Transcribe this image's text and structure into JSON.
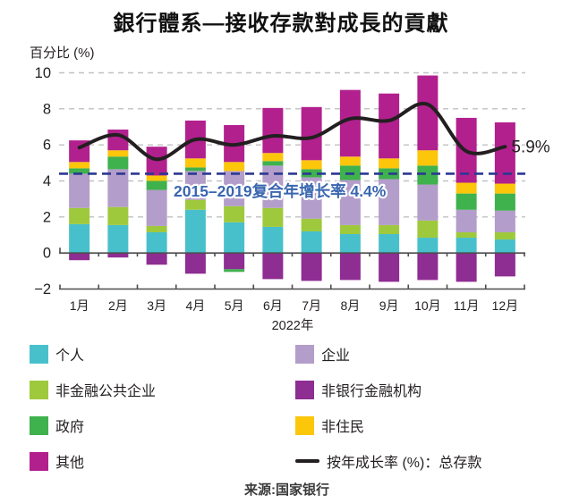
{
  "title": "銀行體系—接收存款對成長的貢獻",
  "y_axis_unit_label": "百分比 (%)",
  "source_label": "来源:国家银行",
  "chart_data": {
    "type": "bar",
    "subtype": "stacked-bar-with-line-overlay",
    "categories": [
      "1月",
      "2月",
      "3月",
      "4月",
      "5月",
      "6月",
      "7月",
      "8月",
      "9月",
      "10月",
      "11月",
      "12月"
    ],
    "x_axis_year_label": "2022年",
    "ylim": [
      -2,
      10
    ],
    "y_ticks": [
      {
        "label": "10",
        "value": 10
      },
      {
        "label": "8",
        "value": 8
      },
      {
        "label": "6",
        "value": 6
      },
      {
        "label": "4",
        "value": 4
      },
      {
        "label": "2",
        "value": 2
      },
      {
        "label": "0",
        "value": 0
      },
      {
        "label": "−2",
        "value": -2
      }
    ],
    "grid": "dashed-horizontal",
    "series": [
      {
        "name": "个人",
        "color": "#48C0CC",
        "values": [
          1.6,
          1.55,
          1.15,
          2.4,
          1.7,
          1.45,
          1.2,
          1.05,
          1.05,
          0.85,
          0.85,
          0.75
        ]
      },
      {
        "name": "非金融公共企业",
        "color": "#9FC93C",
        "values": [
          0.9,
          1.0,
          0.35,
          0.55,
          0.9,
          1.05,
          0.7,
          0.5,
          0.5,
          0.95,
          0.3,
          0.4
        ]
      },
      {
        "name": "企业",
        "color": "#B39DCA",
        "values": [
          1.9,
          2.1,
          2.0,
          1.6,
          1.95,
          2.35,
          2.3,
          2.5,
          2.55,
          2.0,
          1.25,
          1.2
        ]
      },
      {
        "name": "政府",
        "color": "#3FB14D",
        "values": [
          0.3,
          0.7,
          0.5,
          0.2,
          -0.15,
          0.25,
          0.45,
          0.8,
          0.6,
          1.05,
          0.9,
          0.95
        ]
      },
      {
        "name": "非住民",
        "color": "#FCC60B",
        "values": [
          0.35,
          0.35,
          0.3,
          0.5,
          0.5,
          0.45,
          0.5,
          0.5,
          0.55,
          0.85,
          0.6,
          0.55
        ]
      },
      {
        "name": "其他",
        "color": "#B2208E",
        "values": [
          1.2,
          1.15,
          1.6,
          2.1,
          2.05,
          2.5,
          2.95,
          3.7,
          3.6,
          4.15,
          3.6,
          3.4
        ]
      },
      {
        "name": "非银行金融机构",
        "color": "#8E2D92",
        "values": [
          -0.4,
          -0.25,
          -0.65,
          -1.15,
          -0.9,
          -1.45,
          -1.55,
          -1.5,
          -1.6,
          -1.5,
          -1.6,
          -1.3
        ]
      }
    ],
    "line_series": {
      "name": "按年成长率 (%)：总存款",
      "color": "#231F20",
      "values": [
        5.85,
        6.55,
        5.2,
        6.3,
        6.0,
        6.5,
        6.4,
        7.45,
        7.35,
        8.25,
        5.65,
        5.9
      ],
      "end_label": "5.9%"
    },
    "reference_line": {
      "value": 4.4,
      "label": "2015–2019复合年增长率 4.4%",
      "line_color": "#2B3990",
      "label_color": "#3A66B0",
      "style": "dashed"
    }
  },
  "legend": {
    "items": [
      {
        "label": "个人",
        "color": "#48C0CC",
        "type": "swatch"
      },
      {
        "label": "企业",
        "color": "#B39DCA",
        "type": "swatch"
      },
      {
        "label": "非金融公共企业",
        "color": "#9FC93C",
        "type": "swatch"
      },
      {
        "label": "非银行金融机构",
        "color": "#8E2D92",
        "type": "swatch"
      },
      {
        "label": "政府",
        "color": "#3FB14D",
        "type": "swatch"
      },
      {
        "label": "非住民",
        "color": "#FCC60B",
        "type": "swatch"
      },
      {
        "label": "其他",
        "color": "#B2208E",
        "type": "swatch"
      },
      {
        "label": "按年成长率 (%)：总存款",
        "color": "#231F20",
        "type": "line"
      }
    ]
  },
  "style": {
    "gridline_color": "#BFC1C3",
    "axis_color": "#4D4D4F",
    "text_color": "#231F20"
  }
}
